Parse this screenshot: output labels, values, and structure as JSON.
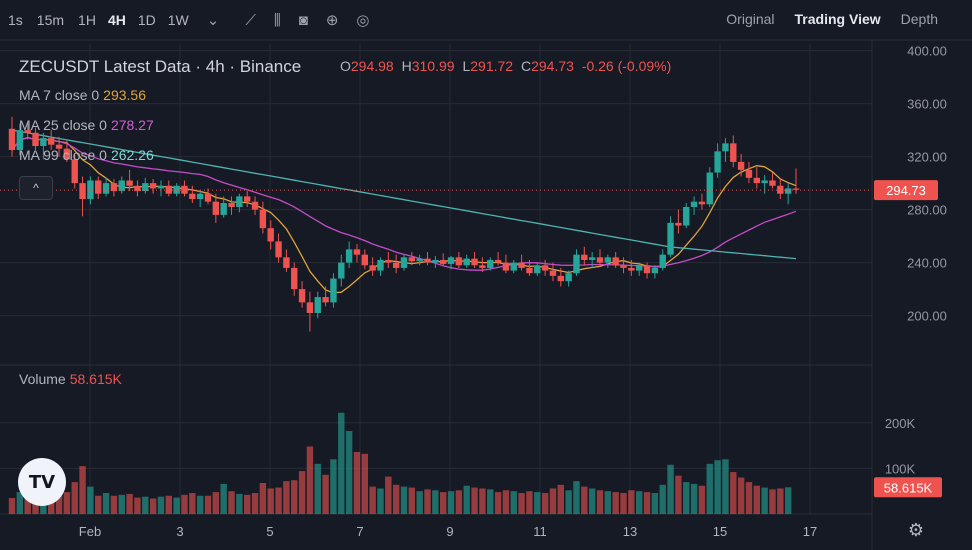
{
  "toolbar": {
    "timeframes": [
      "1s",
      "15m",
      "1H",
      "4H",
      "1D",
      "1W"
    ],
    "active_timeframe": "4H",
    "dropdown_icon": "chevron-down-icon",
    "icons": [
      "candles-icon",
      "indicators-icon",
      "camera-icon",
      "plus-circle-icon",
      "settings-circle-icon"
    ],
    "views": [
      "Original",
      "Trading View",
      "Depth"
    ],
    "active_view": "Trading View"
  },
  "legend": {
    "title": "ZECUSDT Latest Data · 4h · Binance",
    "open_label": "O",
    "open": "294.98",
    "high_label": "H",
    "high": "310.99",
    "low_label": "L",
    "low": "291.72",
    "close_label": "C",
    "close": "294.73",
    "change": "-0.26 (-0.09%)",
    "ma7_label": "MA 7 close 0",
    "ma7": "293.56",
    "ma25_label": "MA 25 close 0",
    "ma25": "278.27",
    "ma99_label": "MA 99 close 0",
    "ma99": "262.26",
    "volume_label": "Volume",
    "volume": "58.615K",
    "collapse": "^"
  },
  "price_axis": {
    "ticks": [
      "400.00",
      "360.00",
      "320.00",
      "280.00",
      "240.00",
      "200.00"
    ],
    "last_price": "294.73"
  },
  "volume_axis": {
    "ticks": [
      "200K",
      "100K"
    ],
    "last_volume": "58.615K"
  },
  "time_axis": {
    "ticks": [
      "Feb",
      "3",
      "5",
      "7",
      "9",
      "11",
      "13",
      "15",
      "17"
    ]
  },
  "colors": {
    "up": "#26a69a",
    "down": "#ef5350",
    "ma7": "#e0a33a",
    "ma25": "#c64bc9",
    "ma99": "#4fb3b0",
    "bg": "#161a25",
    "grid": "#262a35"
  },
  "chart_data": {
    "type": "candlestick",
    "symbol": "ZECUSDT",
    "interval": "4h",
    "x_ticks": [
      "Feb",
      "3",
      "5",
      "7",
      "9",
      "11",
      "13",
      "15",
      "17"
    ],
    "ylim": [
      165,
      405
    ],
    "volume_ylim": [
      0,
      250000
    ],
    "ohlc": [
      [
        341,
        350,
        320,
        325
      ],
      [
        325,
        345,
        321,
        340
      ],
      [
        340,
        345,
        333,
        338
      ],
      [
        338,
        342,
        325,
        328
      ],
      [
        328,
        338,
        318,
        334
      ],
      [
        334,
        340,
        325,
        329
      ],
      [
        329,
        335,
        320,
        326
      ],
      [
        326,
        332,
        316,
        318
      ],
      [
        318,
        322,
        296,
        300
      ],
      [
        300,
        305,
        275,
        288
      ],
      [
        288,
        305,
        284,
        302
      ],
      [
        302,
        305,
        288,
        292
      ],
      [
        292,
        304,
        290,
        300
      ],
      [
        300,
        303,
        290,
        294
      ],
      [
        294,
        305,
        292,
        302
      ],
      [
        302,
        310,
        294,
        298
      ],
      [
        298,
        302,
        290,
        294
      ],
      [
        294,
        304,
        292,
        300
      ],
      [
        300,
        303,
        292,
        296
      ],
      [
        296,
        302,
        290,
        298
      ],
      [
        298,
        302,
        290,
        292
      ],
      [
        292,
        300,
        290,
        298
      ],
      [
        298,
        302,
        290,
        292
      ],
      [
        292,
        298,
        285,
        288
      ],
      [
        288,
        295,
        282,
        292
      ],
      [
        292,
        296,
        284,
        286
      ],
      [
        286,
        292,
        270,
        276
      ],
      [
        276,
        290,
        274,
        285
      ],
      [
        285,
        290,
        276,
        282
      ],
      [
        282,
        292,
        278,
        290
      ],
      [
        290,
        294,
        282,
        286
      ],
      [
        286,
        290,
        276,
        280
      ],
      [
        280,
        286,
        262,
        266
      ],
      [
        266,
        272,
        250,
        256
      ],
      [
        256,
        262,
        240,
        244
      ],
      [
        244,
        250,
        233,
        236
      ],
      [
        236,
        240,
        215,
        220
      ],
      [
        220,
        226,
        206,
        210
      ],
      [
        210,
        218,
        188,
        202
      ],
      [
        202,
        218,
        198,
        214
      ],
      [
        214,
        222,
        207,
        210
      ],
      [
        210,
        232,
        206,
        228
      ],
      [
        228,
        246,
        222,
        240
      ],
      [
        240,
        256,
        236,
        250
      ],
      [
        250,
        254,
        240,
        246
      ],
      [
        246,
        250,
        235,
        238
      ],
      [
        238,
        244,
        230,
        234
      ],
      [
        234,
        244,
        230,
        242
      ],
      [
        242,
        248,
        236,
        240
      ],
      [
        240,
        246,
        232,
        236
      ],
      [
        236,
        246,
        234,
        244
      ],
      [
        244,
        248,
        238,
        241
      ],
      [
        241,
        246,
        238,
        243
      ],
      [
        243,
        248,
        238,
        240
      ],
      [
        240,
        245,
        236,
        242
      ],
      [
        242,
        247,
        238,
        239
      ],
      [
        239,
        245,
        235,
        244
      ],
      [
        244,
        248,
        236,
        238
      ],
      [
        238,
        246,
        236,
        243
      ],
      [
        243,
        248,
        236,
        238
      ],
      [
        238,
        244,
        233,
        236
      ],
      [
        236,
        244,
        234,
        242
      ],
      [
        242,
        248,
        238,
        240
      ],
      [
        240,
        246,
        232,
        234
      ],
      [
        234,
        242,
        232,
        240
      ],
      [
        240,
        246,
        234,
        236
      ],
      [
        236,
        242,
        230,
        232
      ],
      [
        232,
        240,
        230,
        238
      ],
      [
        238,
        242,
        230,
        234
      ],
      [
        234,
        240,
        226,
        230
      ],
      [
        230,
        236,
        222,
        226
      ],
      [
        226,
        234,
        222,
        232
      ],
      [
        232,
        250,
        230,
        246
      ],
      [
        246,
        252,
        238,
        242
      ],
      [
        242,
        248,
        236,
        244
      ],
      [
        244,
        250,
        238,
        240
      ],
      [
        240,
        246,
        236,
        244
      ],
      [
        244,
        248,
        236,
        238
      ],
      [
        238,
        244,
        232,
        236
      ],
      [
        236,
        242,
        230,
        234
      ],
      [
        234,
        240,
        230,
        238
      ],
      [
        238,
        240,
        228,
        232
      ],
      [
        232,
        238,
        228,
        236
      ],
      [
        236,
        250,
        234,
        246
      ],
      [
        246,
        275,
        244,
        270
      ],
      [
        270,
        280,
        262,
        268
      ],
      [
        268,
        285,
        266,
        282
      ],
      [
        282,
        290,
        276,
        286
      ],
      [
        286,
        292,
        280,
        284
      ],
      [
        284,
        312,
        282,
        308
      ],
      [
        308,
        330,
        304,
        324
      ],
      [
        324,
        334,
        316,
        330
      ],
      [
        330,
        336,
        312,
        316
      ],
      [
        316,
        322,
        305,
        310
      ],
      [
        310,
        316,
        300,
        304
      ],
      [
        304,
        312,
        296,
        300
      ],
      [
        300,
        306,
        292,
        302
      ],
      [
        302,
        308,
        296,
        298
      ],
      [
        298,
        304,
        288,
        292
      ],
      [
        292,
        300,
        284,
        296
      ],
      [
        296,
        311,
        292,
        295
      ]
    ],
    "volume_values": [
      35000,
      48000,
      42000,
      50000,
      46000,
      44000,
      42000,
      48000,
      70000,
      105000,
      60000,
      40000,
      46000,
      40000,
      42000,
      44000,
      36000,
      38000,
      34000,
      38000,
      40000,
      36000,
      42000,
      46000,
      40000,
      40000,
      48000,
      66000,
      50000,
      44000,
      42000,
      46000,
      68000,
      56000,
      58000,
      72000,
      74000,
      94000,
      148000,
      110000,
      86000,
      120000,
      222000,
      182000,
      136000,
      132000,
      60000,
      56000,
      82000,
      64000,
      60000,
      58000,
      50000,
      54000,
      52000,
      48000,
      50000,
      52000,
      62000,
      58000,
      56000,
      54000,
      48000,
      52000,
      50000,
      46000,
      50000,
      48000,
      46000,
      56000,
      64000,
      52000,
      72000,
      60000,
      56000,
      52000,
      50000,
      48000,
      46000,
      52000,
      50000,
      48000,
      46000,
      64000,
      108000,
      84000,
      70000,
      66000,
      62000,
      110000,
      118000,
      120000,
      92000,
      80000,
      70000,
      62000,
      58000,
      54000,
      56000,
      58615
    ],
    "ma7": [],
    "ma25": [],
    "ma99": []
  }
}
